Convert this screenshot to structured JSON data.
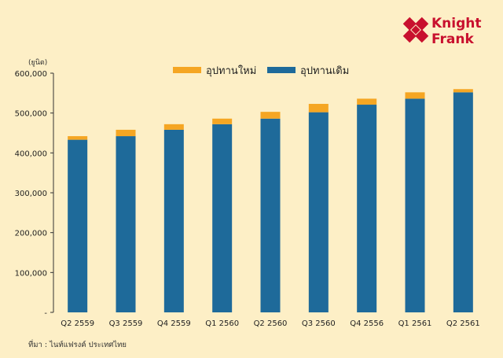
{
  "logo": {
    "line1": "Knight",
    "line2": "Frank",
    "color": "#c8102e"
  },
  "unit": "(ยูนิต)",
  "source": "ที่มา : ไนท์แฟรงค์ ประเทศไทย",
  "colors": {
    "background": "#fdefc6",
    "new_supply": "#f5a623",
    "existing_supply": "#1e6a9a",
    "axis": "#333333"
  },
  "chart_data": {
    "type": "bar",
    "stacked": true,
    "categories": [
      "Q2 2559",
      "Q3 2559",
      "Q4 2559",
      "Q1 2560",
      "Q2 2560",
      "Q3 2560",
      "Q4 2556",
      "Q1 2561",
      "Q2 2561"
    ],
    "series": [
      {
        "name": "อุปทานเดิม",
        "color": "#1e6a9a",
        "values": [
          433000,
          442000,
          458000,
          472000,
          486000,
          502000,
          521000,
          536000,
          552000
        ]
      },
      {
        "name": "อุปทานใหม่",
        "color": "#f5a623",
        "values": [
          9000,
          16000,
          14000,
          14000,
          17000,
          21000,
          15000,
          16000,
          8000
        ]
      }
    ],
    "y_ticks": [
      "-",
      "100,000",
      "200,000",
      "300,000",
      "400,000",
      "500,000",
      "600,000"
    ],
    "ylim": [
      0,
      600000
    ],
    "legend_position": "top-center",
    "grid": false
  }
}
